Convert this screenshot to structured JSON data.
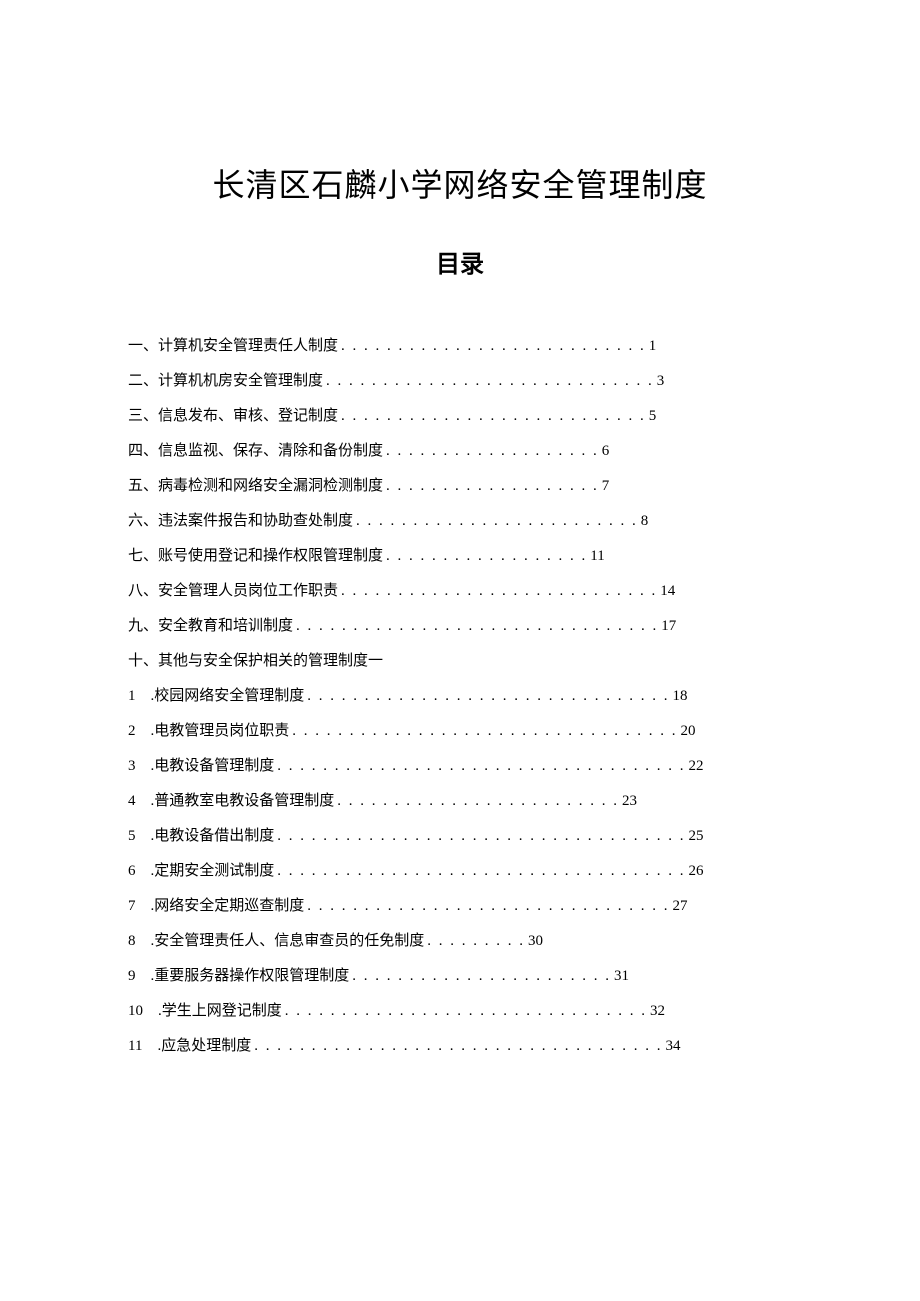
{
  "document": {
    "title": "长清区石麟小学网络安全管理制度",
    "toc_heading": "目录",
    "text_color": "#000000",
    "background_color": "#ffffff",
    "title_fontsize": 32,
    "heading_fontsize": 24,
    "body_fontsize": 15,
    "entries": [
      {
        "label": "一、计算机安全管理责任人制度",
        "dots": ". . . . . . . . . . . . . . . . . . . . . . . . . . .",
        "page": "1"
      },
      {
        "label": "二、计算机机房安全管理制度",
        "dots": ". . . . . . . . . . . . . . . . . . . . . . . . . . . . .",
        "page": "3"
      },
      {
        "label": "三、信息发布、审核、登记制度",
        "dots": ". . . . . . . . . . . . . . . . . . . . . . . . . . .",
        "page": "5"
      },
      {
        "label": "四、信息监视、保存、清除和备份制度",
        "dots": " . . . . . . . . . . . . . . . . . . . ",
        "page": "6"
      },
      {
        "label": "五、病毒检测和网络安全漏洞检测制度",
        "dots": " . . . . . . . . . . . . . . . . . . . ",
        "page": "7"
      },
      {
        "label": "六、违法案件报告和协助查处制度",
        "dots": ". . . . . . . . . . . . . . . . . . . . . . . . .",
        "page": "8"
      },
      {
        "label": "七、账号使用登记和操作权限管理制度",
        "dots": " . . . . . . . . . . . . . . . . . . ",
        "page": "11"
      },
      {
        "label": "八、安全管理人员岗位工作职责",
        "dots": ". . . . . . . . . . . . . . . . . . . . . . . . . . . .",
        "page": "14"
      },
      {
        "label": "九、安全教育和培训制度",
        "dots": ". . . . . . . . . . . . . . . . . . . . . . . . . . . . . . . .",
        "page": "17"
      },
      {
        "label": "十、其他与安全保护相关的管理制度一",
        "dots": "",
        "page": ""
      },
      {
        "label": "1　.校园网络安全管理制度",
        "dots": ". . . . . . . . . . . . . . . . . . . . . . . . . . . . . . . .",
        "page": "18"
      },
      {
        "label": "2　.电教管理员岗位职责",
        "dots": ". . . . . . . . . . . . . . . . . . . . . . . . . . . . . . . . . .",
        "page": "20"
      },
      {
        "label": "3　.电教设备管理制度",
        "dots": ". . . . . . . . . . . . . . . . . . . . . . . . . . . . . . . . . . . .",
        "page": "22"
      },
      {
        "label": "4　.普通教室电教设备管理制度",
        "dots": " . . . . . . . . . . . . . . . . . . . . . . . . . ",
        "page": "23"
      },
      {
        "label": "5　.电教设备借出制度",
        "dots": ". . . . . . . . . . . . . . . . . . . . . . . . . . . . . . . . . . . .",
        "page": "25"
      },
      {
        "label": "6　.定期安全测试制度",
        "dots": ". . . . . . . . . . . . . . . . . . . . . . . . . . . . . . . . . . . .",
        "page": "26"
      },
      {
        "label": "7　.网络安全定期巡查制度",
        "dots": ". . . . . . . . . . . . . . . . . . . . . . . . . . . . . . . .",
        "page": "27"
      },
      {
        "label": "8　.安全管理责任人、信息审查员的任免制度",
        "dots": ". . . . . . . . .",
        "page": "30"
      },
      {
        "label": "9　.重要服务器操作权限管理制度",
        "dots": " . . . . . . . . . . . . . . . . . . . . . . . ",
        "page": "31"
      },
      {
        "label": "10　.学生上网登记制度",
        "dots": " . . . . . . . . . . . . . . . . . . . . . . . . . . . . . . . . ",
        "page": "32"
      },
      {
        "label": "11　.应急处理制度",
        "dots": " . . . . . . . . . . . . . . . . . . . . . . . . . . . . . . . . . . . . ",
        "page": "34"
      }
    ]
  }
}
